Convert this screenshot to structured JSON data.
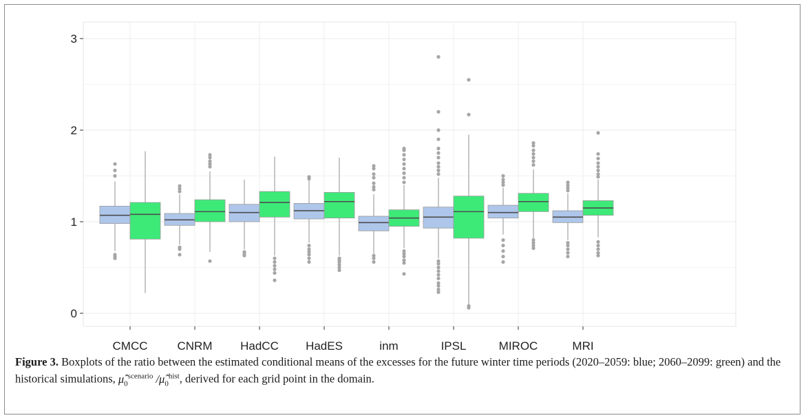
{
  "chart_data": {
    "type": "boxplot",
    "title": "",
    "xlabel": "",
    "ylabel": "",
    "ylim": [
      0,
      3
    ],
    "yticks": [
      0,
      1,
      2,
      3
    ],
    "grid": true,
    "legend": "none",
    "categories": [
      "CMCC",
      "CNRM",
      "HadCC",
      "HadES",
      "inm",
      "IPSL",
      "MIROC",
      "MRI"
    ],
    "series": [
      {
        "period": "2020–2059",
        "color": "#aec6ea",
        "boxes": [
          {
            "q1": 0.98,
            "median": 1.07,
            "q3": 1.17,
            "whisker_low": 0.68,
            "whisker_high": 1.44,
            "outliers": [
              0.6,
              0.62,
              0.64,
              1.5,
              1.56,
              1.63
            ]
          },
          {
            "q1": 0.96,
            "median": 1.02,
            "q3": 1.09,
            "whisker_low": 0.75,
            "whisker_high": 1.3,
            "outliers": [
              0.64,
              0.7,
              0.72,
              1.33,
              1.36,
              1.39
            ]
          },
          {
            "q1": 1.0,
            "median": 1.1,
            "q3": 1.19,
            "whisker_low": 0.7,
            "whisker_high": 1.46,
            "outliers": [
              0.63,
              0.65,
              0.67
            ]
          },
          {
            "q1": 1.03,
            "median": 1.12,
            "q3": 1.2,
            "whisker_low": 0.77,
            "whisker_high": 1.46,
            "outliers": [
              0.56,
              0.6,
              0.64,
              0.67,
              0.7,
              0.74,
              1.47,
              1.49
            ]
          },
          {
            "q1": 0.9,
            "median": 0.99,
            "q3": 1.06,
            "whisker_low": 0.65,
            "whisker_high": 1.3,
            "outliers": [
              0.56,
              0.6,
              0.63,
              1.35,
              1.38,
              1.42,
              1.48,
              1.52,
              1.58,
              1.61
            ]
          },
          {
            "q1": 0.93,
            "median": 1.05,
            "q3": 1.16,
            "whisker_low": 0.6,
            "whisker_high": 1.48,
            "outliers": [
              0.23,
              0.26,
              0.3,
              0.33,
              0.38,
              0.42,
              0.46,
              0.5,
              0.54,
              0.57,
              1.52,
              1.56,
              1.6,
              1.64,
              1.7,
              1.75,
              1.8,
              1.9,
              2.0,
              2.2,
              2.8
            ]
          },
          {
            "q1": 1.04,
            "median": 1.1,
            "q3": 1.18,
            "whisker_low": 0.86,
            "whisker_high": 1.37,
            "outliers": [
              0.56,
              0.62,
              0.68,
              0.74,
              0.8,
              1.4,
              1.43,
              1.46,
              1.5
            ]
          },
          {
            "q1": 0.99,
            "median": 1.05,
            "q3": 1.12,
            "whisker_low": 0.8,
            "whisker_high": 1.31,
            "outliers": [
              0.62,
              0.66,
              0.7,
              0.74,
              0.77,
              1.34,
              1.37,
              1.4,
              1.43
            ]
          }
        ]
      },
      {
        "period": "2060–2099",
        "color": "#3dea78",
        "boxes": [
          {
            "q1": 0.81,
            "median": 1.08,
            "q3": 1.21,
            "whisker_low": 0.22,
            "whisker_high": 1.77,
            "outliers": []
          },
          {
            "q1": 1.0,
            "median": 1.11,
            "q3": 1.24,
            "whisker_low": 0.67,
            "whisker_high": 1.55,
            "outliers": [
              0.57,
              1.6,
              1.63,
              1.66,
              1.7,
              1.73
            ]
          },
          {
            "q1": 1.05,
            "median": 1.21,
            "q3": 1.33,
            "whisker_low": 0.63,
            "whisker_high": 1.71,
            "outliers": [
              0.36,
              0.44,
              0.48,
              0.52,
              0.56,
              0.6
            ]
          },
          {
            "q1": 1.04,
            "median": 1.22,
            "q3": 1.32,
            "whisker_low": 0.63,
            "whisker_high": 1.7,
            "outliers": [
              0.47,
              0.5,
              0.53,
              0.56,
              0.58,
              0.6
            ]
          },
          {
            "q1": 0.95,
            "median": 1.04,
            "q3": 1.13,
            "whisker_low": 0.71,
            "whisker_high": 1.4,
            "outliers": [
              0.43,
              0.55,
              0.58,
              0.62,
              0.65,
              0.68,
              1.43,
              1.48,
              1.53,
              1.58,
              1.63,
              1.68,
              1.73,
              1.78,
              1.8
            ]
          },
          {
            "q1": 0.82,
            "median": 1.11,
            "q3": 1.28,
            "whisker_low": 0.09,
            "whisker_high": 1.95,
            "outliers": [
              0.06,
              0.08,
              2.17,
              2.55
            ]
          },
          {
            "q1": 1.11,
            "median": 1.22,
            "q3": 1.31,
            "whisker_low": 0.81,
            "whisker_high": 1.57,
            "outliers": [
              0.71,
              0.74,
              0.77,
              0.8,
              1.62,
              1.66,
              1.7,
              1.74,
              1.78,
              1.83,
              1.86
            ]
          },
          {
            "q1": 1.07,
            "median": 1.15,
            "q3": 1.23,
            "whisker_low": 0.83,
            "whisker_high": 1.46,
            "outliers": [
              0.63,
              0.66,
              0.7,
              0.74,
              0.78,
              1.49,
              1.52,
              1.56,
              1.6,
              1.64,
              1.69,
              1.74,
              1.97
            ]
          }
        ]
      }
    ]
  },
  "caption": {
    "figure_label": "Figure 3.",
    "text_before": " Boxplots of the ratio between the estimated conditional means of the excesses for the future winter time periods (2020–2059: blue; 2060–2099: green) and the historical simulations, ",
    "mu_symbol": "μ̂",
    "sub_zero": "0",
    "sup_scenario": "scenario",
    "slash": " /",
    "sup_hist": "hist",
    "text_after": ", derived for each grid point in the domain."
  }
}
